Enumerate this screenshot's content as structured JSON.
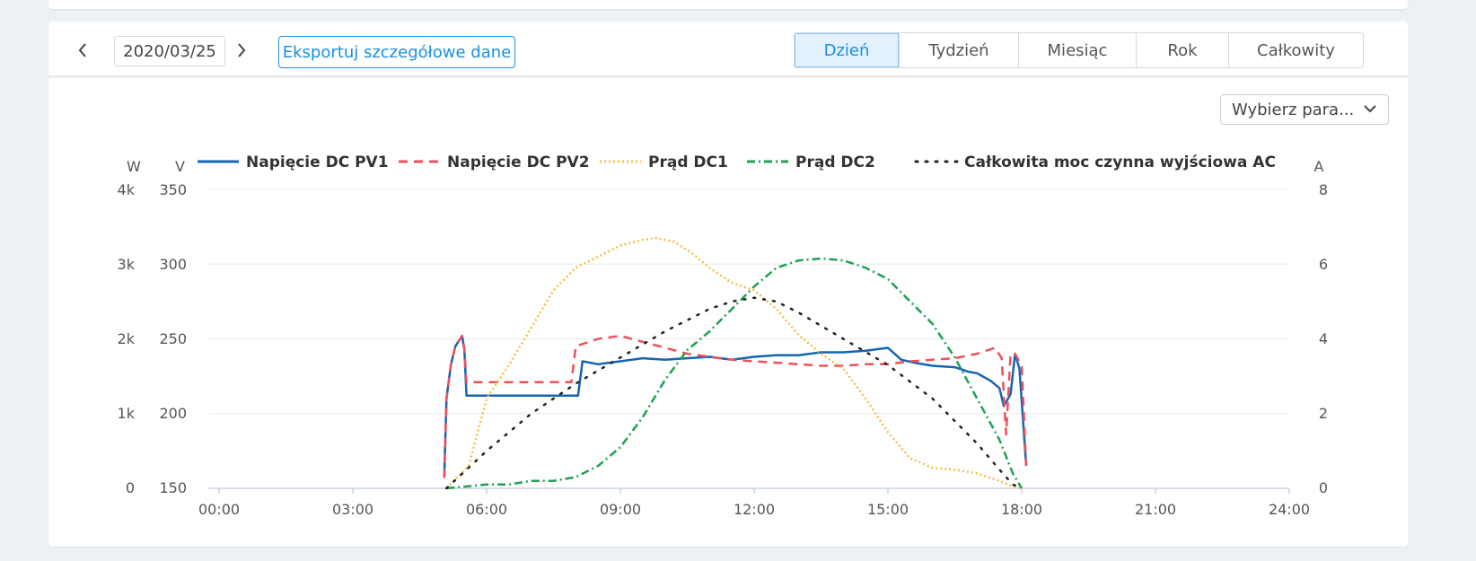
{
  "toolbar": {
    "date": "2020/03/25",
    "export_label": "Eksportuj szczegółowe dane",
    "periods": [
      "Dzień",
      "Tydzień",
      "Miesiąc",
      "Rok",
      "Całkowity"
    ],
    "active_period": "Dzień"
  },
  "param_select": {
    "value": "Wybierz para..."
  },
  "colors": {
    "accent": "#1a8fdd"
  },
  "chart_data": {
    "type": "line",
    "x_unit": "hour",
    "axes": {
      "left_power": {
        "label": "W",
        "ticks": [
          "0",
          "1k",
          "2k",
          "3k",
          "4k"
        ],
        "range": [
          0,
          4000
        ]
      },
      "left_voltage": {
        "label": "V",
        "ticks": [
          "150",
          "200",
          "250",
          "300",
          "350"
        ],
        "range": [
          150,
          350
        ]
      },
      "right_current": {
        "label": "A",
        "ticks": [
          "0",
          "2",
          "4",
          "6",
          "8"
        ],
        "range": [
          0,
          8
        ]
      },
      "x": {
        "ticks": [
          "00:00",
          "03:00",
          "06:00",
          "09:00",
          "12:00",
          "15:00",
          "18:00",
          "21:00",
          "24:00"
        ],
        "range": [
          0,
          24
        ]
      }
    },
    "grid": true,
    "legend_position": "top",
    "series": [
      {
        "name": "Napięcie DC PV1",
        "axis": "left_voltage",
        "color": "#1565b0",
        "style": "solid",
        "points": [
          [
            5.05,
            157
          ],
          [
            5.1,
            210
          ],
          [
            5.2,
            233
          ],
          [
            5.3,
            245
          ],
          [
            5.45,
            252
          ],
          [
            5.5,
            243
          ],
          [
            5.55,
            212
          ],
          [
            6.5,
            212
          ],
          [
            7.5,
            212
          ],
          [
            8.05,
            212
          ],
          [
            8.15,
            235
          ],
          [
            8.5,
            233
          ],
          [
            9,
            235
          ],
          [
            9.5,
            237
          ],
          [
            10,
            236
          ],
          [
            10.5,
            237
          ],
          [
            11,
            238
          ],
          [
            11.5,
            236
          ],
          [
            12,
            238
          ],
          [
            12.5,
            239
          ],
          [
            13,
            239
          ],
          [
            13.5,
            241
          ],
          [
            14,
            241
          ],
          [
            14.5,
            242
          ],
          [
            15,
            244
          ],
          [
            15.3,
            236
          ],
          [
            15.6,
            234
          ],
          [
            16,
            232
          ],
          [
            16.5,
            231
          ],
          [
            16.8,
            228
          ],
          [
            17,
            227
          ],
          [
            17.3,
            222
          ],
          [
            17.5,
            217
          ],
          [
            17.6,
            205
          ],
          [
            17.75,
            213
          ],
          [
            17.85,
            240
          ],
          [
            17.95,
            230
          ],
          [
            18.1,
            165
          ]
        ]
      },
      {
        "name": "Napięcie DC PV2",
        "axis": "left_voltage",
        "color": "#f0505a",
        "style": "dashed",
        "points": [
          [
            5.05,
            157
          ],
          [
            5.1,
            210
          ],
          [
            5.2,
            233
          ],
          [
            5.3,
            245
          ],
          [
            5.45,
            252
          ],
          [
            5.5,
            243
          ],
          [
            5.55,
            221
          ],
          [
            6.5,
            221
          ],
          [
            7.5,
            221
          ],
          [
            7.9,
            221
          ],
          [
            8,
            245
          ],
          [
            8.5,
            250
          ],
          [
            9,
            252
          ],
          [
            9.5,
            248
          ],
          [
            10,
            244
          ],
          [
            10.5,
            240
          ],
          [
            11,
            238
          ],
          [
            11.5,
            236
          ],
          [
            12,
            235
          ],
          [
            12.5,
            234
          ],
          [
            13,
            233
          ],
          [
            13.5,
            232
          ],
          [
            14,
            232
          ],
          [
            14.5,
            233
          ],
          [
            15,
            233
          ],
          [
            15.5,
            235
          ],
          [
            16,
            236
          ],
          [
            16.5,
            237
          ],
          [
            17,
            240
          ],
          [
            17.4,
            244
          ],
          [
            17.55,
            237
          ],
          [
            17.65,
            186
          ],
          [
            17.75,
            240
          ],
          [
            17.85,
            240
          ],
          [
            18,
            232
          ],
          [
            18.1,
            165
          ]
        ]
      },
      {
        "name": "Prąd DC1",
        "axis": "right_current",
        "color": "#f5be48",
        "style": "dotted",
        "points": [
          [
            5.1,
            0
          ],
          [
            5.6,
            0.6
          ],
          [
            6,
            2.4
          ],
          [
            6.5,
            3.3
          ],
          [
            7,
            4.3
          ],
          [
            7.5,
            5.3
          ],
          [
            8,
            5.9
          ],
          [
            8.5,
            6.2
          ],
          [
            9,
            6.5
          ],
          [
            9.5,
            6.65
          ],
          [
            9.8,
            6.7
          ],
          [
            10.2,
            6.6
          ],
          [
            10.6,
            6.3
          ],
          [
            11,
            5.9
          ],
          [
            11.5,
            5.5
          ],
          [
            12,
            5.3
          ],
          [
            12.5,
            4.8
          ],
          [
            13,
            4.1
          ],
          [
            13.5,
            3.6
          ],
          [
            14,
            3.2
          ],
          [
            14.5,
            2.4
          ],
          [
            15,
            1.5
          ],
          [
            15.5,
            0.8
          ],
          [
            16,
            0.55
          ],
          [
            16.5,
            0.5
          ],
          [
            17,
            0.4
          ],
          [
            17.5,
            0.2
          ],
          [
            17.8,
            0.05
          ],
          [
            18,
            0
          ]
        ]
      },
      {
        "name": "Prąd DC2",
        "axis": "right_current",
        "color": "#1fa052",
        "style": "dashdot",
        "points": [
          [
            5.1,
            0
          ],
          [
            6,
            0.1
          ],
          [
            6.5,
            0.1
          ],
          [
            7,
            0.2
          ],
          [
            7.5,
            0.2
          ],
          [
            8,
            0.3
          ],
          [
            8.5,
            0.6
          ],
          [
            9,
            1.1
          ],
          [
            9.5,
            1.9
          ],
          [
            10,
            2.9
          ],
          [
            10.5,
            3.7
          ],
          [
            11,
            4.2
          ],
          [
            11.5,
            4.8
          ],
          [
            12,
            5.4
          ],
          [
            12.5,
            5.9
          ],
          [
            13,
            6.1
          ],
          [
            13.5,
            6.15
          ],
          [
            14,
            6.1
          ],
          [
            14.5,
            5.9
          ],
          [
            15,
            5.6
          ],
          [
            15.5,
            5.0
          ],
          [
            16,
            4.4
          ],
          [
            16.5,
            3.5
          ],
          [
            17,
            2.4
          ],
          [
            17.5,
            1.3
          ],
          [
            17.8,
            0.4
          ],
          [
            18,
            0
          ]
        ]
      },
      {
        "name": "Całkowita moc czynna wyjściowa AC",
        "axis": "left_power",
        "color": "#222222",
        "style": "sparse-dot",
        "points": [
          [
            5.1,
            0
          ],
          [
            6,
            500
          ],
          [
            7,
            1000
          ],
          [
            8,
            1400
          ],
          [
            9,
            1750
          ],
          [
            10,
            2100
          ],
          [
            11,
            2400
          ],
          [
            11.5,
            2500
          ],
          [
            12,
            2550
          ],
          [
            12.5,
            2500
          ],
          [
            13,
            2350
          ],
          [
            14,
            2000
          ],
          [
            15,
            1650
          ],
          [
            16,
            1200
          ],
          [
            17,
            600
          ],
          [
            17.5,
            250
          ],
          [
            17.8,
            50
          ],
          [
            18,
            0
          ]
        ]
      }
    ]
  }
}
